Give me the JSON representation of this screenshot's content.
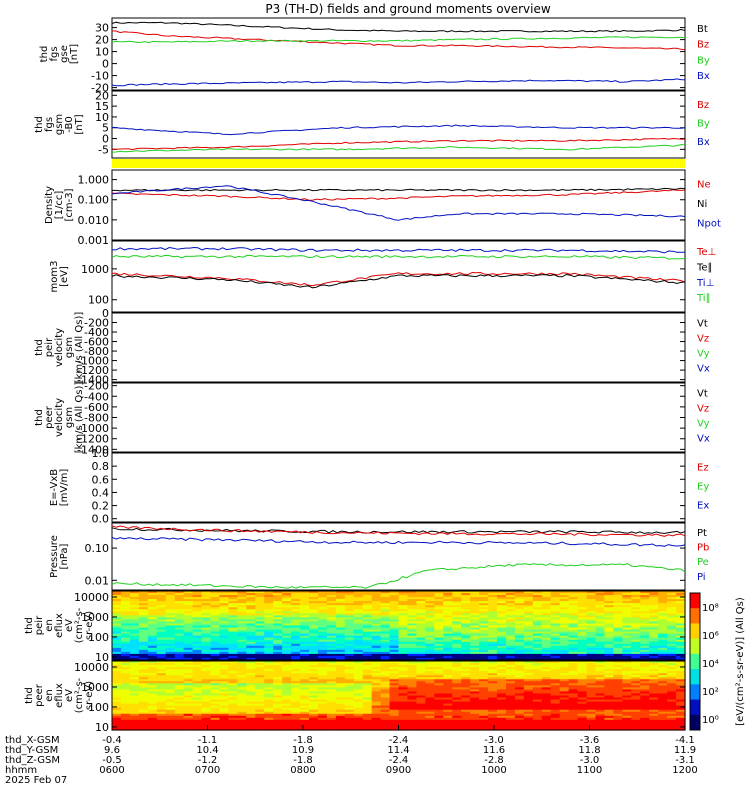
{
  "title": "P3 (TH-D) fields and ground moments overview",
  "colors": {
    "black": "#000000",
    "red": "#e00000",
    "green": "#20d020",
    "blue": "#0010c0",
    "yellow": "#ffff00"
  },
  "chart_data": [
    {
      "id": "fgs",
      "type": "line",
      "ylabel": [
        "thd",
        "fgs",
        "gse",
        "[nT]"
      ],
      "ylim": [
        -22,
        38
      ],
      "ticks": [
        -20,
        -10,
        0,
        10,
        20,
        30
      ],
      "series": [
        {
          "name": "Bt",
          "color": "black",
          "x": [
            0,
            0.1,
            0.25,
            0.4,
            0.5,
            0.6,
            0.75,
            0.9,
            1
          ],
          "y": [
            34,
            34,
            31,
            28,
            27,
            27,
            27,
            27,
            28
          ]
        },
        {
          "name": "Bz",
          "color": "red",
          "x": [
            0,
            0.1,
            0.25,
            0.4,
            0.5,
            0.6,
            0.75,
            0.9,
            1
          ],
          "y": [
            27,
            23,
            20,
            17,
            15,
            15,
            14,
            13,
            12
          ]
        },
        {
          "name": "By",
          "color": "green",
          "x": [
            0,
            0.1,
            0.25,
            0.4,
            0.5,
            0.6,
            0.75,
            0.9,
            1
          ],
          "y": [
            18,
            18,
            19,
            19,
            19,
            20,
            21,
            22,
            22
          ]
        },
        {
          "name": "Bx",
          "color": "blue",
          "x": [
            0,
            0.1,
            0.25,
            0.4,
            0.5,
            0.6,
            0.75,
            0.9,
            1
          ],
          "y": [
            -18,
            -17,
            -16,
            -15,
            -16,
            -15,
            -14,
            -15,
            -13
          ]
        }
      ]
    },
    {
      "id": "fgs_gsm",
      "type": "line",
      "ylabel": [
        "thd",
        "fgs",
        "gsm",
        "-B0",
        "[nT]"
      ],
      "ylim": [
        -9,
        22
      ],
      "ticks": [
        -5,
        0,
        5,
        10,
        15,
        20
      ],
      "series": [
        {
          "name": "Bz",
          "color": "red",
          "x": [
            0,
            0.2,
            0.4,
            0.6,
            0.8,
            1
          ],
          "y": [
            -5,
            -4,
            -2,
            -1,
            -1,
            0
          ]
        },
        {
          "name": "By",
          "color": "green",
          "x": [
            0,
            0.2,
            0.4,
            0.6,
            0.8,
            1
          ],
          "y": [
            -6,
            -5,
            -5,
            -4,
            -5,
            -3
          ]
        },
        {
          "name": "Bx",
          "color": "blue",
          "x": [
            0,
            0.2,
            0.4,
            0.6,
            0.8,
            1
          ],
          "y": [
            5,
            2,
            5,
            6,
            5,
            5
          ]
        }
      ]
    },
    {
      "id": "density",
      "type": "line",
      "log": true,
      "ylabel": [
        "Density",
        "[1/cc]",
        "[cm-3]"
      ],
      "ylim": [
        0.001,
        3
      ],
      "ticks": [
        0.001,
        0.01,
        0.1,
        1
      ],
      "ticklabels": [
        "0.001",
        "0.010",
        "0.100",
        "1.000"
      ],
      "series": [
        {
          "name": "Ne",
          "color": "red",
          "x": [
            0,
            0.2,
            0.35,
            0.5,
            0.6,
            0.8,
            1
          ],
          "y": [
            0.2,
            0.15,
            0.1,
            0.12,
            0.15,
            0.18,
            0.3
          ]
        },
        {
          "name": "Ni",
          "color": "black",
          "x": [
            0,
            0.2,
            0.35,
            0.5,
            0.6,
            0.8,
            1
          ],
          "y": [
            0.3,
            0.3,
            0.3,
            0.3,
            0.3,
            0.3,
            0.35
          ]
        },
        {
          "name": "Npot",
          "color": "blue",
          "x": [
            0,
            0.2,
            0.35,
            0.5,
            0.6,
            0.8,
            1
          ],
          "y": [
            0.2,
            0.5,
            0.08,
            0.01,
            0.02,
            0.02,
            0.015
          ]
        }
      ]
    },
    {
      "id": "temp",
      "type": "line",
      "log": true,
      "ylabel": [
        "mom3",
        "[eV]"
      ],
      "ylim": [
        40,
        8000
      ],
      "ticks": [
        100,
        1000
      ],
      "ticklabels": [
        "100",
        "1000"
      ],
      "series": [
        {
          "name": "Te⊥",
          "color": "red",
          "x": [
            0,
            0.2,
            0.35,
            0.5,
            0.6,
            0.8,
            1
          ],
          "y": [
            700,
            500,
            300,
            700,
            700,
            700,
            400
          ]
        },
        {
          "name": "Te∥",
          "color": "black",
          "x": [
            0,
            0.2,
            0.35,
            0.5,
            0.6,
            0.8,
            1
          ],
          "y": [
            600,
            450,
            250,
            600,
            600,
            600,
            350
          ]
        },
        {
          "name": "Ti⊥",
          "color": "blue",
          "x": [
            0,
            0.2,
            0.35,
            0.5,
            0.6,
            0.8,
            1
          ],
          "y": [
            4500,
            4500,
            4000,
            4000,
            4000,
            4000,
            3500
          ]
        },
        {
          "name": "Ti∥",
          "color": "green",
          "x": [
            0,
            0.2,
            0.35,
            0.5,
            0.6,
            0.8,
            1
          ],
          "y": [
            2500,
            2500,
            2500,
            2500,
            2500,
            2500,
            2200
          ]
        }
      ]
    },
    {
      "id": "peir_vel",
      "type": "line",
      "ylabel": [
        "thd",
        "peir",
        "velocity",
        "gsm",
        "[km/s (All Qs)]"
      ],
      "ylim": [
        -1450,
        0
      ],
      "ticks": [
        0,
        -200,
        -400,
        -600,
        -800,
        -1000,
        -1200,
        -1400
      ],
      "legend": [
        "Vt",
        "Vz",
        "Vy",
        "Vx"
      ],
      "legend_colors": [
        "black",
        "red",
        "green",
        "blue"
      ]
    },
    {
      "id": "peer_vel",
      "type": "line",
      "ylabel": [
        "thd",
        "peer",
        "velocity",
        "gsm",
        "[km/s (All Qs)]"
      ],
      "ylim": [
        -1450,
        -150
      ],
      "ticks": [
        -200,
        -400,
        -600,
        -800,
        -1000,
        -1200,
        -1400
      ],
      "legend": [
        "Vt",
        "Vz",
        "Vy",
        "Vx"
      ],
      "legend_colors": [
        "black",
        "red",
        "green",
        "blue"
      ]
    },
    {
      "id": "efield",
      "type": "line",
      "ylabel": [
        "E=-VxB",
        "[mV/m]"
      ],
      "ylim": [
        -0.05,
        1.0
      ],
      "ticks": [
        0,
        0.2,
        0.4,
        0.6,
        0.8,
        1.0
      ],
      "ticklabels": [
        "0.0",
        "0.2",
        "0.4",
        "0.6",
        "0.8",
        "1.0"
      ],
      "legend": [
        "Ez",
        "Ey",
        "Ex"
      ],
      "legend_colors": [
        "red",
        "green",
        "blue"
      ]
    },
    {
      "id": "pressure",
      "type": "line",
      "log": true,
      "ylabel": [
        "Pressure",
        "[nPa]"
      ],
      "ylim": [
        0.005,
        0.6
      ],
      "ticks": [
        0.01,
        0.1
      ],
      "ticklabels": [
        "0.01",
        "0.10"
      ],
      "series": [
        {
          "name": "Pt",
          "color": "black",
          "x": [
            0,
            0.2,
            0.4,
            0.6,
            0.8,
            1
          ],
          "y": [
            0.4,
            0.35,
            0.32,
            0.32,
            0.32,
            0.3
          ]
        },
        {
          "name": "Pb",
          "color": "red",
          "x": [
            0,
            0.2,
            0.4,
            0.6,
            0.8,
            1
          ],
          "y": [
            0.45,
            0.35,
            0.3,
            0.28,
            0.27,
            0.25
          ]
        },
        {
          "name": "Pe",
          "color": "green",
          "x": [
            0,
            0.15,
            0.3,
            0.45,
            0.55,
            0.7,
            0.9,
            1
          ],
          "y": [
            0.008,
            0.007,
            0.006,
            0.006,
            0.02,
            0.03,
            0.03,
            0.02
          ]
        },
        {
          "name": "Pi",
          "color": "blue",
          "x": [
            0,
            0.2,
            0.4,
            0.6,
            0.8,
            1
          ],
          "y": [
            0.2,
            0.18,
            0.15,
            0.15,
            0.14,
            0.12
          ]
        }
      ]
    },
    {
      "id": "peir_spec",
      "type": "heatmap",
      "log": true,
      "ylabel": [
        "thd",
        "peir",
        "en",
        "eflux",
        "eV",
        "(cm²-s-",
        "sr-eV)"
      ],
      "ylim": [
        7,
        20000
      ],
      "ticks": [
        10,
        100,
        1000,
        10000
      ],
      "ticklabels": [
        "10",
        "100",
        "1000",
        "10000"
      ]
    },
    {
      "id": "peer_spec",
      "type": "heatmap",
      "log": true,
      "ylabel": [
        "thd",
        "peer",
        "en",
        "eflux",
        "eV",
        "(cm²-s-",
        "sr-eV)"
      ],
      "ylim": [
        7,
        20000
      ],
      "ticks": [
        10,
        100,
        1000,
        10000
      ],
      "ticklabels": [
        "10",
        "100",
        "1000",
        "10000"
      ]
    }
  ],
  "colorbar": {
    "ticklabels": [
      "10⁸",
      "10⁶",
      "10⁴",
      "10²",
      "10⁰"
    ],
    "label": "[eV/(cm²-s-sr-eV)] (All Qs)"
  },
  "xaxis": {
    "rows": [
      {
        "label": "thd_X-GSM",
        "values": [
          "-0.4",
          "-1.1",
          "-1.8",
          "-2.4",
          "-3.0",
          "-3.6",
          "-4.1"
        ]
      },
      {
        "label": "thd_Y-GSM",
        "values": [
          "9.6",
          "10.4",
          "10.9",
          "11.4",
          "11.6",
          "11.8",
          "11.9"
        ]
      },
      {
        "label": "thd_Z-GSM",
        "values": [
          "-0.5",
          "-1.2",
          "-1.8",
          "-2.4",
          "-2.8",
          "-3.0",
          "-3.1"
        ]
      },
      {
        "label": "hhmm",
        "values": [
          "0600",
          "0700",
          "0800",
          "0900",
          "1000",
          "1100",
          "1200"
        ]
      }
    ],
    "date": "2025 Feb 07"
  }
}
